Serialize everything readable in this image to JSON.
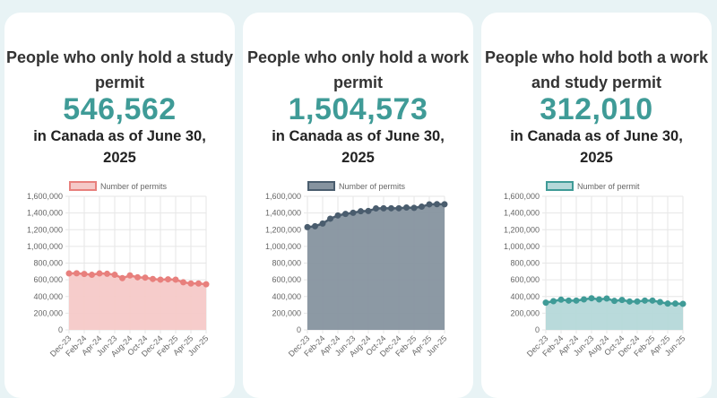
{
  "cards": [
    {
      "title": "People who only hold a study permit",
      "value": "546,562",
      "subtitle": "in Canada as of June 30, 2025"
    },
    {
      "title": "People who only hold a work permit",
      "value": "1,504,573",
      "subtitle": "in Canada as of June 30, 2025"
    },
    {
      "title": "People who hold both a work and study permit",
      "value": "312,010",
      "subtitle": "in Canada as of June 30, 2025"
    }
  ],
  "chart_data": [
    {
      "type": "area",
      "legend": "Number of permits",
      "legend_position": "top",
      "grid": true,
      "color": "#e8807d",
      "fill": "#f5c9c8",
      "ylim": [
        0,
        1600000
      ],
      "yticks": [
        "0",
        "200,000",
        "400,000",
        "600,000",
        "800,000",
        "1,000,000",
        "1,200,000",
        "1,400,000",
        "1,600,000"
      ],
      "xtick_labels": [
        "Dec-23",
        "Feb-24",
        "Apr-24",
        "Jun-23",
        "Aug-24",
        "Oct-24",
        "Dec-24",
        "Feb-25",
        "Apr-25",
        "Jun-25"
      ],
      "values": [
        676000,
        678000,
        670000,
        660000,
        676000,
        672000,
        660000,
        620000,
        652000,
        630000,
        626000,
        610000,
        602000,
        606000,
        602000,
        570000,
        556000,
        556000,
        546562
      ]
    },
    {
      "type": "area",
      "legend": "Number of permits",
      "legend_position": "top",
      "grid": true,
      "color": "#4a5d6e",
      "fill": "#86939f",
      "ylim": [
        0,
        1600000
      ],
      "yticks": [
        "0",
        "200,000",
        "400,000",
        "600,000",
        "800,000",
        "1,000,000",
        "1,200,000",
        "1,400,000",
        "1,600,000"
      ],
      "xtick_labels": [
        "Dec-23",
        "Feb-24",
        "Apr-24",
        "Jun-23",
        "Aug-24",
        "Oct-24",
        "Dec-24",
        "Feb-25",
        "Apr-25",
        "Jun-25"
      ],
      "values": [
        1231000,
        1242000,
        1274000,
        1332000,
        1371000,
        1389000,
        1403000,
        1421000,
        1424000,
        1455000,
        1456000,
        1457000,
        1457000,
        1466000,
        1462000,
        1476000,
        1504000,
        1506000,
        1504573
      ]
    },
    {
      "type": "area",
      "legend": "Number of permit",
      "legend_position": "top",
      "grid": true,
      "color": "#3f9b97",
      "fill": "#b5d8d9",
      "ylim": [
        0,
        1600000
      ],
      "yticks": [
        "0",
        "200,000",
        "400,000",
        "600,000",
        "800,000",
        "1,000,000",
        "1,200,000",
        "1,400,000",
        "1,600,000"
      ],
      "xtick_labels": [
        "Dec-23",
        "Feb-24",
        "Apr-24",
        "Jun-23",
        "Aug-24",
        "Oct-24",
        "Dec-24",
        "Feb-25",
        "Apr-25",
        "Jun-25"
      ],
      "values": [
        326000,
        344000,
        362000,
        351000,
        351000,
        365000,
        379000,
        365000,
        376000,
        347000,
        358000,
        340000,
        340000,
        351000,
        351000,
        333000,
        315000,
        315000,
        312010
      ]
    }
  ]
}
